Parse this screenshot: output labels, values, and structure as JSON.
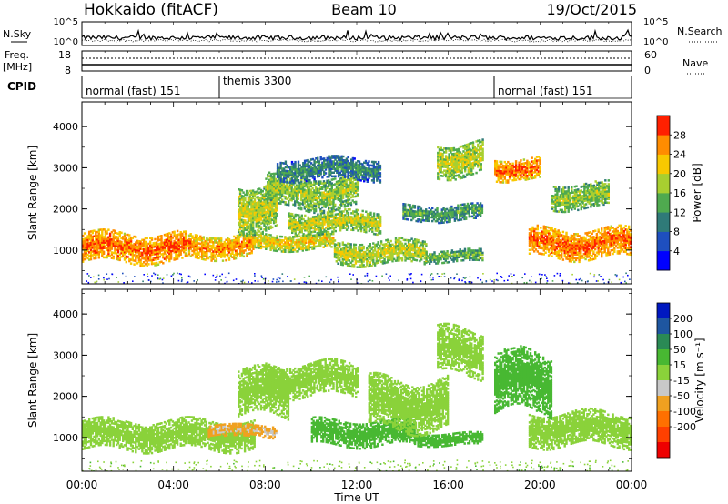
{
  "header": {
    "station": "Hokkaido (fitACF)",
    "beam": "Beam 10",
    "date": "19/Oct/2015"
  },
  "top_panels": {
    "nsky_label": "N.Sky",
    "nsearch_label": "N.Search",
    "count_ticks": [
      "10^5",
      "10^0"
    ],
    "freq_label_line1": "Freq.",
    "freq_label_line2": "[MHz]",
    "freq_ticks": [
      "18",
      "8"
    ],
    "nave_label": "Nave",
    "nave_ticks": [
      "60",
      "0"
    ],
    "cpid_label": "CPID",
    "cpid_segments": [
      {
        "label": "normal (fast) 151",
        "start_hour": 0
      },
      {
        "label": "themis 3300",
        "start_hour": 6
      },
      {
        "label": "normal (fast) 151",
        "start_hour": 18
      }
    ]
  },
  "chart_data": [
    {
      "type": "heatmap",
      "panel": "power",
      "ylabel": "Slant Range [km]",
      "xlim_hours": [
        0,
        24
      ],
      "ylim_km": [
        180,
        4600
      ],
      "y_ticks": [
        1000,
        2000,
        3000,
        4000
      ],
      "colorbar_label": "Power [dB]",
      "colorbar_ticks": [
        4,
        8,
        12,
        16,
        20,
        24,
        28
      ],
      "colorbar_colors": [
        "#0000ff",
        "#1e4fbf",
        "#2f7a78",
        "#4faa4f",
        "#a8cf30",
        "#f8c800",
        "#ff8c00",
        "#ff2000"
      ],
      "regions": [
        {
          "t": [
            0,
            4.5
          ],
          "r": [
            700,
            1400
          ],
          "value": 28
        },
        {
          "t": [
            4.5,
            7.5
          ],
          "r": [
            800,
            1350
          ],
          "value": 26
        },
        {
          "t": [
            7.5,
            11
          ],
          "r": [
            1000,
            1400
          ],
          "value": 22
        },
        {
          "t": [
            11,
            15
          ],
          "r": [
            650,
            1200
          ],
          "value": 20
        },
        {
          "t": [
            15,
            17.5
          ],
          "r": [
            700,
            1000
          ],
          "value": 16
        },
        {
          "t": [
            6.8,
            8.5
          ],
          "r": [
            1500,
            2600
          ],
          "value": 20
        },
        {
          "t": [
            8,
            12
          ],
          "r": [
            2000,
            2800
          ],
          "value": 18
        },
        {
          "t": [
            9,
            13
          ],
          "r": [
            1400,
            1900
          ],
          "value": 20
        },
        {
          "t": [
            8.5,
            13
          ],
          "r": [
            2700,
            3200
          ],
          "value": 12
        },
        {
          "t": [
            15.5,
            17.5
          ],
          "r": [
            2800,
            3600
          ],
          "value": 20
        },
        {
          "t": [
            14,
            17.5
          ],
          "r": [
            1700,
            2100
          ],
          "value": 14
        },
        {
          "t": [
            18,
            20
          ],
          "r": [
            2700,
            3200
          ],
          "value": 28
        },
        {
          "t": [
            19.5,
            24
          ],
          "r": [
            800,
            1500
          ],
          "value": 28
        },
        {
          "t": [
            20.5,
            23
          ],
          "r": [
            2000,
            2600
          ],
          "value": 18
        }
      ]
    },
    {
      "type": "heatmap",
      "panel": "velocity",
      "ylabel": "Slant Range [km]",
      "xlabel": "Time UT",
      "xlim_hours": [
        0,
        24
      ],
      "x_tick_labels": [
        "00:00",
        "04:00",
        "08:00",
        "12:00",
        "16:00",
        "20:00",
        "00:00"
      ],
      "ylim_km": [
        180,
        4600
      ],
      "y_ticks": [
        1000,
        2000,
        3000,
        4000
      ],
      "colorbar_label": "Velocity [m s⁻¹]",
      "colorbar_ticks": [
        200,
        100,
        50,
        15,
        -15,
        -50,
        -100,
        -200
      ],
      "colorbar_colors": [
        "#0018c0",
        "#1e56a0",
        "#2a8a55",
        "#48b832",
        "#8ad23a",
        "#c8c8c8",
        "#f0a020",
        "#ff7000",
        "#ff4000",
        "#ee0000"
      ],
      "regions": [
        {
          "t": [
            0,
            7.5
          ],
          "r": [
            700,
            1400
          ],
          "value": 0
        },
        {
          "t": [
            6.8,
            9
          ],
          "r": [
            1500,
            2600
          ],
          "value": 0
        },
        {
          "t": [
            8,
            12
          ],
          "r": [
            2000,
            2800
          ],
          "value": 0
        },
        {
          "t": [
            10,
            14.5
          ],
          "r": [
            800,
            1400
          ],
          "value": 40
        },
        {
          "t": [
            14.5,
            17.5
          ],
          "r": [
            800,
            1100
          ],
          "value": 30
        },
        {
          "t": [
            12.5,
            16
          ],
          "r": [
            1200,
            2400
          ],
          "value": 0
        },
        {
          "t": [
            15.5,
            17.5
          ],
          "r": [
            2500,
            3600
          ],
          "value": 0
        },
        {
          "t": [
            18,
            20.5
          ],
          "r": [
            1600,
            3000
          ],
          "value": 30
        },
        {
          "t": [
            19.5,
            24
          ],
          "r": [
            800,
            1600
          ],
          "value": 0
        },
        {
          "t": [
            5.5,
            8.5
          ],
          "r": [
            1000,
            1300
          ],
          "value": -50
        }
      ]
    }
  ]
}
